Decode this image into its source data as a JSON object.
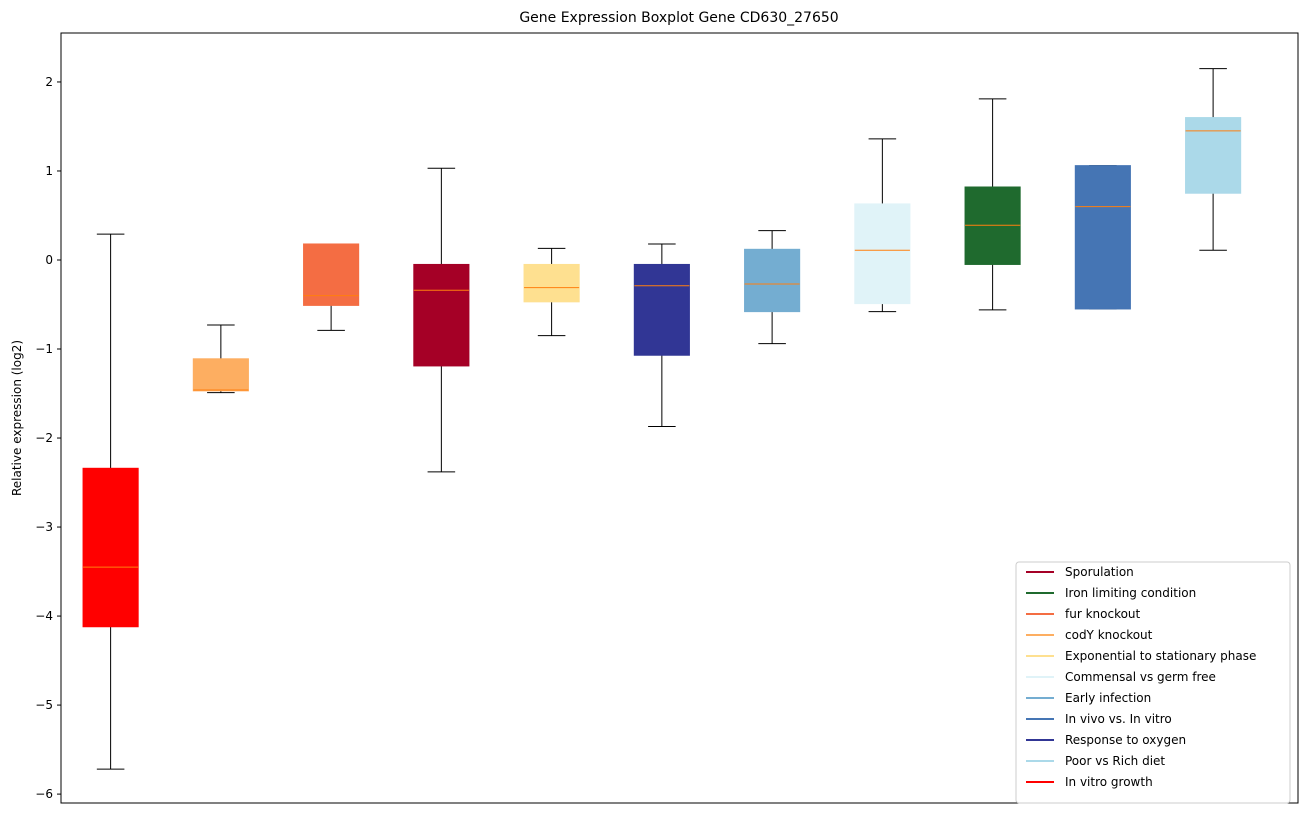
{
  "chart_data": {
    "type": "boxplot",
    "title": "Gene Expression Boxplot Gene CD630_27650",
    "xlabel": "",
    "ylabel": "Relative expression (log2)",
    "ylim": [
      -6.1,
      2.55
    ],
    "yticks": [
      -6,
      -5,
      -4,
      -3,
      -2,
      -1,
      0,
      1,
      2
    ],
    "ytick_labels": [
      "−6",
      "−5",
      "−4",
      "−3",
      "−2",
      "−1",
      "0",
      "1",
      "2"
    ],
    "median_color": "#ff7f0e",
    "legend_position": "lower-right",
    "boxes": [
      {
        "color": "#ff0000",
        "whisker_low": -5.72,
        "q1": -4.12,
        "median": -3.45,
        "q3": -2.34,
        "whisker_high": 0.29
      },
      {
        "color": "#fdae61",
        "whisker_low": -1.49,
        "q1": -1.47,
        "median": -1.46,
        "q3": -1.11,
        "whisker_high": -0.73
      },
      {
        "color": "#f46d43",
        "whisker_low": -0.79,
        "q1": -0.51,
        "median": -0.4,
        "q3": 0.18,
        "whisker_high": 0.18
      },
      {
        "color": "#a50026",
        "whisker_low": -2.38,
        "q1": -1.19,
        "median": -0.34,
        "q3": -0.05,
        "whisker_high": 1.03
      },
      {
        "color": "#fee090",
        "whisker_low": -0.85,
        "q1": -0.47,
        "median": -0.31,
        "q3": -0.05,
        "whisker_high": 0.13
      },
      {
        "color": "#313695",
        "whisker_low": -1.87,
        "q1": -1.07,
        "median": -0.29,
        "q3": -0.05,
        "whisker_high": 0.18
      },
      {
        "color": "#74add1",
        "whisker_low": -0.94,
        "q1": -0.58,
        "median": -0.27,
        "q3": 0.12,
        "whisker_high": 0.33
      },
      {
        "color": "#e0f3f8",
        "whisker_low": -0.58,
        "q1": -0.49,
        "median": 0.11,
        "q3": 0.63,
        "whisker_high": 1.36
      },
      {
        "color": "#1f6a2e",
        "whisker_low": -0.56,
        "q1": -0.05,
        "median": 0.39,
        "q3": 0.82,
        "whisker_high": 1.81
      },
      {
        "color": "#4575b4",
        "whisker_low": -0.55,
        "q1": -0.55,
        "median": 0.6,
        "q3": 1.06,
        "whisker_high": 1.06
      },
      {
        "color": "#abd9e9",
        "whisker_low": 0.11,
        "q1": 0.75,
        "median": 1.45,
        "q3": 1.6,
        "whisker_high": 2.15
      }
    ],
    "legend": [
      {
        "label": "Sporulation",
        "color": "#a50026"
      },
      {
        "label": "Iron limiting condition",
        "color": "#1f6a2e"
      },
      {
        "label": "fur knockout",
        "color": "#f46d43"
      },
      {
        "label": "codY knockout",
        "color": "#fdae61"
      },
      {
        "label": "Exponential to stationary phase",
        "color": "#fee090"
      },
      {
        "label": "Commensal vs germ free",
        "color": "#e0f3f8"
      },
      {
        "label": "Early infection",
        "color": "#74add1"
      },
      {
        "label": "In vivo vs. In vitro",
        "color": "#4575b4"
      },
      {
        "label": "Response to oxygen",
        "color": "#313695"
      },
      {
        "label": "Poor vs Rich diet",
        "color": "#abd9e9"
      },
      {
        "label": "In vitro growth",
        "color": "#ff0000"
      }
    ]
  }
}
